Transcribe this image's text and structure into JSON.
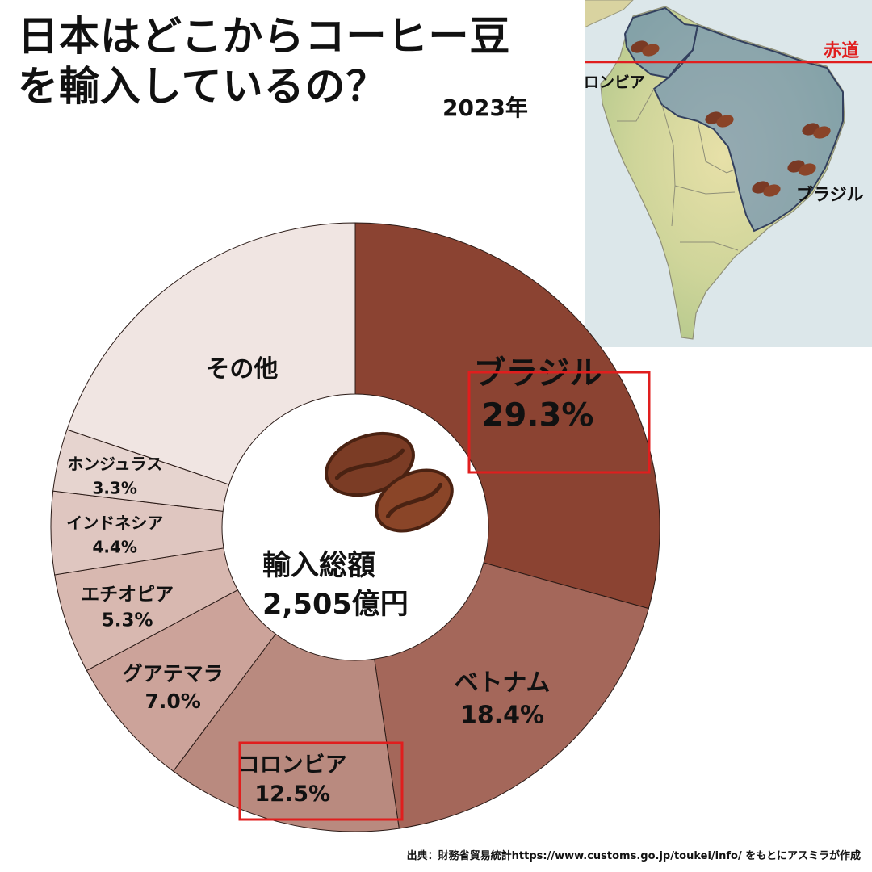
{
  "title": {
    "line1": "日本はどこからコーヒー豆",
    "line2": "を輸入しているの？"
  },
  "year": "2023年",
  "map": {
    "equator_label": "赤道",
    "colombia_label": "コロンビア",
    "brazil_label": "ブラジル"
  },
  "center": {
    "line1": "輸入総額",
    "line2": "2,505億円"
  },
  "source": "出典：財務省貿易統計https://www.customs.go.jp/toukei/info/ をもとにアスミラが作成",
  "chart_data": {
    "type": "pie",
    "title": "日本はどこからコーヒー豆を輸入しているの？",
    "total": "2,505億円",
    "slices": [
      {
        "name": "ブラジル",
        "value": 29.3,
        "label": "29.3%",
        "color": "#8b4332",
        "highlight": true
      },
      {
        "name": "ベトナム",
        "value": 18.4,
        "label": "18.4%",
        "color": "#a4675a"
      },
      {
        "name": "コロンビア",
        "value": 12.5,
        "label": "12.5%",
        "color": "#b98a7f",
        "highlight": true
      },
      {
        "name": "グアテマラ",
        "value": 7.0,
        "label": "7.0%",
        "color": "#cca39a"
      },
      {
        "name": "エチオピア",
        "value": 5.3,
        "label": "5.3%",
        "color": "#d8b8b0"
      },
      {
        "name": "インドネシア",
        "value": 4.4,
        "label": "4.4%",
        "color": "#dfc6c0"
      },
      {
        "name": "ホンジュラス",
        "value": 3.3,
        "label": "3.3%",
        "color": "#e6d4cf"
      },
      {
        "name": "その他",
        "value": 19.8,
        "label": "",
        "color": "#f0e5e2"
      }
    ]
  }
}
